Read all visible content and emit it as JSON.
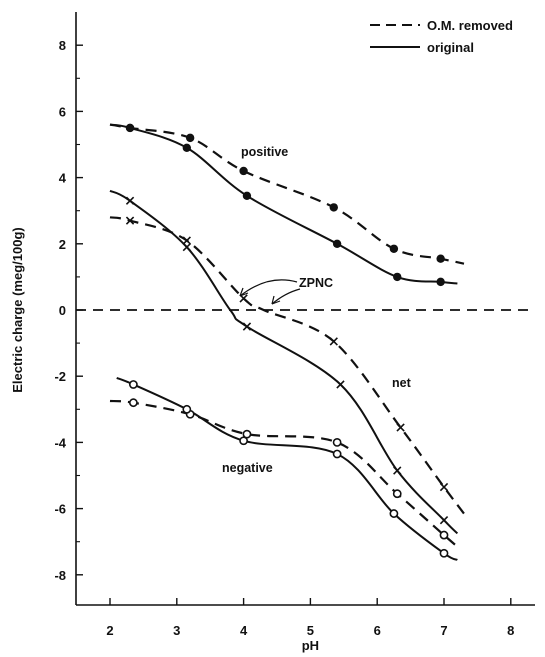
{
  "chart_data": {
    "type": "line",
    "xlabel": "pH",
    "ylabel": "Electric charge (meg/100g)",
    "xlim": [
      1.55,
      8.55
    ],
    "ylim": [
      -9.0,
      9.0
    ],
    "x_ticks": [
      "2",
      "3",
      "4",
      "5",
      "6",
      "7",
      "8"
    ],
    "y_ticks": [
      "8",
      "6",
      "4",
      "2",
      "0",
      "-2",
      "-4",
      "-6",
      "-8"
    ],
    "grid": false,
    "legend_position": "top-right",
    "legend": [
      {
        "label": "O.M. removed",
        "style": "dashed"
      },
      {
        "label": "original",
        "style": "solid"
      }
    ],
    "annotations": {
      "positive": "positive",
      "net": "net",
      "negative": "negative",
      "zpnc": "ZPNC"
    },
    "series": [
      {
        "group": "positive",
        "treatment": "O.M. removed",
        "style": "dashed",
        "marker": "filled-circle",
        "x": [
          2.0,
          2.3,
          3.2,
          4.0,
          5.35,
          6.25,
          6.95,
          7.3
        ],
        "y": [
          5.6,
          5.5,
          5.2,
          4.2,
          3.1,
          1.85,
          1.55,
          1.4
        ],
        "markers_at": [
          1,
          2,
          3,
          4,
          5,
          6
        ]
      },
      {
        "group": "positive",
        "treatment": "original",
        "style": "solid",
        "marker": "filled-circle",
        "x": [
          2.0,
          2.3,
          3.15,
          4.05,
          5.4,
          6.3,
          6.95,
          7.2
        ],
        "y": [
          5.6,
          5.5,
          4.9,
          3.45,
          2.0,
          1.0,
          0.85,
          0.8
        ],
        "markers_at": [
          1,
          2,
          3,
          4,
          5,
          6
        ]
      },
      {
        "group": "net",
        "treatment": "O.M. removed",
        "style": "dashed",
        "marker": "x",
        "x": [
          2.0,
          2.3,
          3.15,
          4.0,
          4.3,
          5.35,
          6.35,
          7.0,
          7.3
        ],
        "y": [
          2.8,
          2.7,
          2.1,
          0.35,
          0.0,
          -0.95,
          -3.55,
          -5.35,
          -6.15
        ],
        "markers_at": [
          1,
          2,
          3,
          5,
          6,
          7
        ]
      },
      {
        "group": "net",
        "treatment": "original",
        "style": "solid",
        "marker": "x",
        "x": [
          2.0,
          2.3,
          3.15,
          3.8,
          4.05,
          5.45,
          6.3,
          7.0,
          7.2
        ],
        "y": [
          3.6,
          3.3,
          1.9,
          0.0,
          -0.5,
          -2.25,
          -4.85,
          -6.35,
          -6.75
        ],
        "markers_at": [
          1,
          2,
          4,
          5,
          6,
          7
        ]
      },
      {
        "group": "negative",
        "treatment": "O.M. removed",
        "style": "dashed",
        "marker": "open-circle",
        "x": [
          2.0,
          2.35,
          3.2,
          4.05,
          5.4,
          6.3,
          7.0,
          7.2
        ],
        "y": [
          -2.75,
          -2.8,
          -3.15,
          -3.75,
          -4.0,
          -5.55,
          -6.8,
          -7.15
        ],
        "markers_at": [
          1,
          2,
          3,
          4,
          5,
          6
        ]
      },
      {
        "group": "negative",
        "treatment": "original",
        "style": "solid",
        "marker": "open-circle",
        "x": [
          2.1,
          2.35,
          3.15,
          4.0,
          5.4,
          6.25,
          7.0,
          7.2
        ],
        "y": [
          -2.05,
          -2.25,
          -3.0,
          -3.95,
          -4.35,
          -6.15,
          -7.35,
          -7.55
        ],
        "markers_at": [
          1,
          2,
          3,
          4,
          5,
          6
        ]
      }
    ]
  }
}
